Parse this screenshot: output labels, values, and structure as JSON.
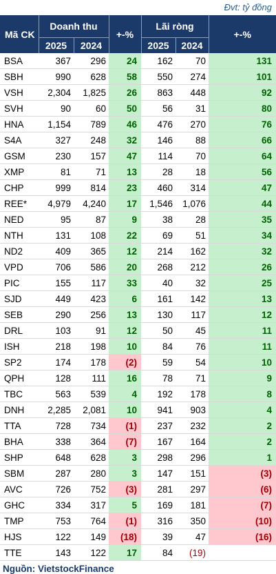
{
  "unit_note": "Đvt: tỷ đồng",
  "source": "Nguồn: VietstockFinance",
  "chart_data": {
    "type": "table",
    "headers": {
      "ticker": "Mã CK",
      "revenue": "Doanh thu",
      "net_profit": "Lãi ròng",
      "change": "+-%",
      "years": [
        "2025",
        "2024"
      ]
    },
    "rows": [
      {
        "ticker": "BSA",
        "rev_2025": "367",
        "rev_2024": "296",
        "rev_chg": "24",
        "np_2025": "162",
        "np_2024": "70",
        "np_chg": "131"
      },
      {
        "ticker": "SBH",
        "rev_2025": "990",
        "rev_2024": "628",
        "rev_chg": "58",
        "np_2025": "550",
        "np_2024": "274",
        "np_chg": "101"
      },
      {
        "ticker": "VSH",
        "rev_2025": "2,304",
        "rev_2024": "1,825",
        "rev_chg": "26",
        "np_2025": "863",
        "np_2024": "448",
        "np_chg": "92"
      },
      {
        "ticker": "SVH",
        "rev_2025": "90",
        "rev_2024": "60",
        "rev_chg": "50",
        "np_2025": "56",
        "np_2024": "31",
        "np_chg": "80"
      },
      {
        "ticker": "HNA",
        "rev_2025": "1,154",
        "rev_2024": "789",
        "rev_chg": "46",
        "np_2025": "476",
        "np_2024": "270",
        "np_chg": "76"
      },
      {
        "ticker": "S4A",
        "rev_2025": "327",
        "rev_2024": "248",
        "rev_chg": "32",
        "np_2025": "146",
        "np_2024": "88",
        "np_chg": "66"
      },
      {
        "ticker": "GSM",
        "rev_2025": "230",
        "rev_2024": "157",
        "rev_chg": "47",
        "np_2025": "114",
        "np_2024": "70",
        "np_chg": "64"
      },
      {
        "ticker": "XMP",
        "rev_2025": "81",
        "rev_2024": "71",
        "rev_chg": "13",
        "np_2025": "28",
        "np_2024": "18",
        "np_chg": "56"
      },
      {
        "ticker": "CHP",
        "rev_2025": "999",
        "rev_2024": "814",
        "rev_chg": "23",
        "np_2025": "460",
        "np_2024": "314",
        "np_chg": "47"
      },
      {
        "ticker": "REE*",
        "rev_2025": "4,979",
        "rev_2024": "4,240",
        "rev_chg": "17",
        "np_2025": "1,546",
        "np_2024": "1,076",
        "np_chg": "44"
      },
      {
        "ticker": "NED",
        "rev_2025": "95",
        "rev_2024": "87",
        "rev_chg": "9",
        "np_2025": "38",
        "np_2024": "28",
        "np_chg": "35"
      },
      {
        "ticker": "NTH",
        "rev_2025": "131",
        "rev_2024": "108",
        "rev_chg": "22",
        "np_2025": "69",
        "np_2024": "51",
        "np_chg": "34"
      },
      {
        "ticker": "ND2",
        "rev_2025": "409",
        "rev_2024": "365",
        "rev_chg": "12",
        "np_2025": "214",
        "np_2024": "162",
        "np_chg": "32"
      },
      {
        "ticker": "VPD",
        "rev_2025": "706",
        "rev_2024": "586",
        "rev_chg": "20",
        "np_2025": "268",
        "np_2024": "212",
        "np_chg": "26"
      },
      {
        "ticker": "PIC",
        "rev_2025": "155",
        "rev_2024": "117",
        "rev_chg": "33",
        "np_2025": "40",
        "np_2024": "32",
        "np_chg": "25"
      },
      {
        "ticker": "SJD",
        "rev_2025": "449",
        "rev_2024": "423",
        "rev_chg": "6",
        "np_2025": "161",
        "np_2024": "142",
        "np_chg": "13"
      },
      {
        "ticker": "SEB",
        "rev_2025": "290",
        "rev_2024": "256",
        "rev_chg": "13",
        "np_2025": "130",
        "np_2024": "117",
        "np_chg": "12"
      },
      {
        "ticker": "DRL",
        "rev_2025": "103",
        "rev_2024": "91",
        "rev_chg": "12",
        "np_2025": "50",
        "np_2024": "45",
        "np_chg": "11"
      },
      {
        "ticker": "ISH",
        "rev_2025": "218",
        "rev_2024": "198",
        "rev_chg": "10",
        "np_2025": "84",
        "np_2024": "76",
        "np_chg": "11"
      },
      {
        "ticker": "SP2",
        "rev_2025": "174",
        "rev_2024": "178",
        "rev_chg": "(2)",
        "np_2025": "59",
        "np_2024": "54",
        "np_chg": "10"
      },
      {
        "ticker": "QPH",
        "rev_2025": "128",
        "rev_2024": "111",
        "rev_chg": "16",
        "np_2025": "78",
        "np_2024": "71",
        "np_chg": "9"
      },
      {
        "ticker": "TBC",
        "rev_2025": "563",
        "rev_2024": "539",
        "rev_chg": "4",
        "np_2025": "192",
        "np_2024": "178",
        "np_chg": "8"
      },
      {
        "ticker": "DNH",
        "rev_2025": "2,285",
        "rev_2024": "2,081",
        "rev_chg": "10",
        "np_2025": "941",
        "np_2024": "903",
        "np_chg": "4"
      },
      {
        "ticker": "TTA",
        "rev_2025": "728",
        "rev_2024": "734",
        "rev_chg": "(1)",
        "np_2025": "237",
        "np_2024": "232",
        "np_chg": "2"
      },
      {
        "ticker": "BHA",
        "rev_2025": "338",
        "rev_2024": "364",
        "rev_chg": "(7)",
        "np_2025": "167",
        "np_2024": "164",
        "np_chg": "2"
      },
      {
        "ticker": "SHP",
        "rev_2025": "648",
        "rev_2024": "628",
        "rev_chg": "3",
        "np_2025": "298",
        "np_2024": "296",
        "np_chg": "1"
      },
      {
        "ticker": "SBM",
        "rev_2025": "287",
        "rev_2024": "280",
        "rev_chg": "3",
        "np_2025": "147",
        "np_2024": "151",
        "np_chg": "(3)"
      },
      {
        "ticker": "AVC",
        "rev_2025": "726",
        "rev_2024": "752",
        "rev_chg": "(3)",
        "np_2025": "281",
        "np_2024": "297",
        "np_chg": "(6)"
      },
      {
        "ticker": "GHC",
        "rev_2025": "334",
        "rev_2024": "317",
        "rev_chg": "5",
        "np_2025": "169",
        "np_2024": "181",
        "np_chg": "(7)"
      },
      {
        "ticker": "TMP",
        "rev_2025": "753",
        "rev_2024": "764",
        "rev_chg": "(1)",
        "np_2025": "316",
        "np_2024": "350",
        "np_chg": "(10)"
      },
      {
        "ticker": "HJS",
        "rev_2025": "122",
        "rev_2024": "149",
        "rev_chg": "(18)",
        "np_2025": "39",
        "np_2024": "47",
        "np_chg": "(16)"
      },
      {
        "ticker": "TTE",
        "rev_2025": "143",
        "rev_2024": "122",
        "rev_chg": "17",
        "np_2025": "84",
        "np_2024": "(19)",
        "np_chg": ""
      }
    ],
    "colors": {
      "header_bg": "#1b3a69",
      "positive_bg": "#c6efce",
      "positive_text": "#006100",
      "negative_bg": "#ffc7ce",
      "negative_text": "#9c0006"
    }
  }
}
